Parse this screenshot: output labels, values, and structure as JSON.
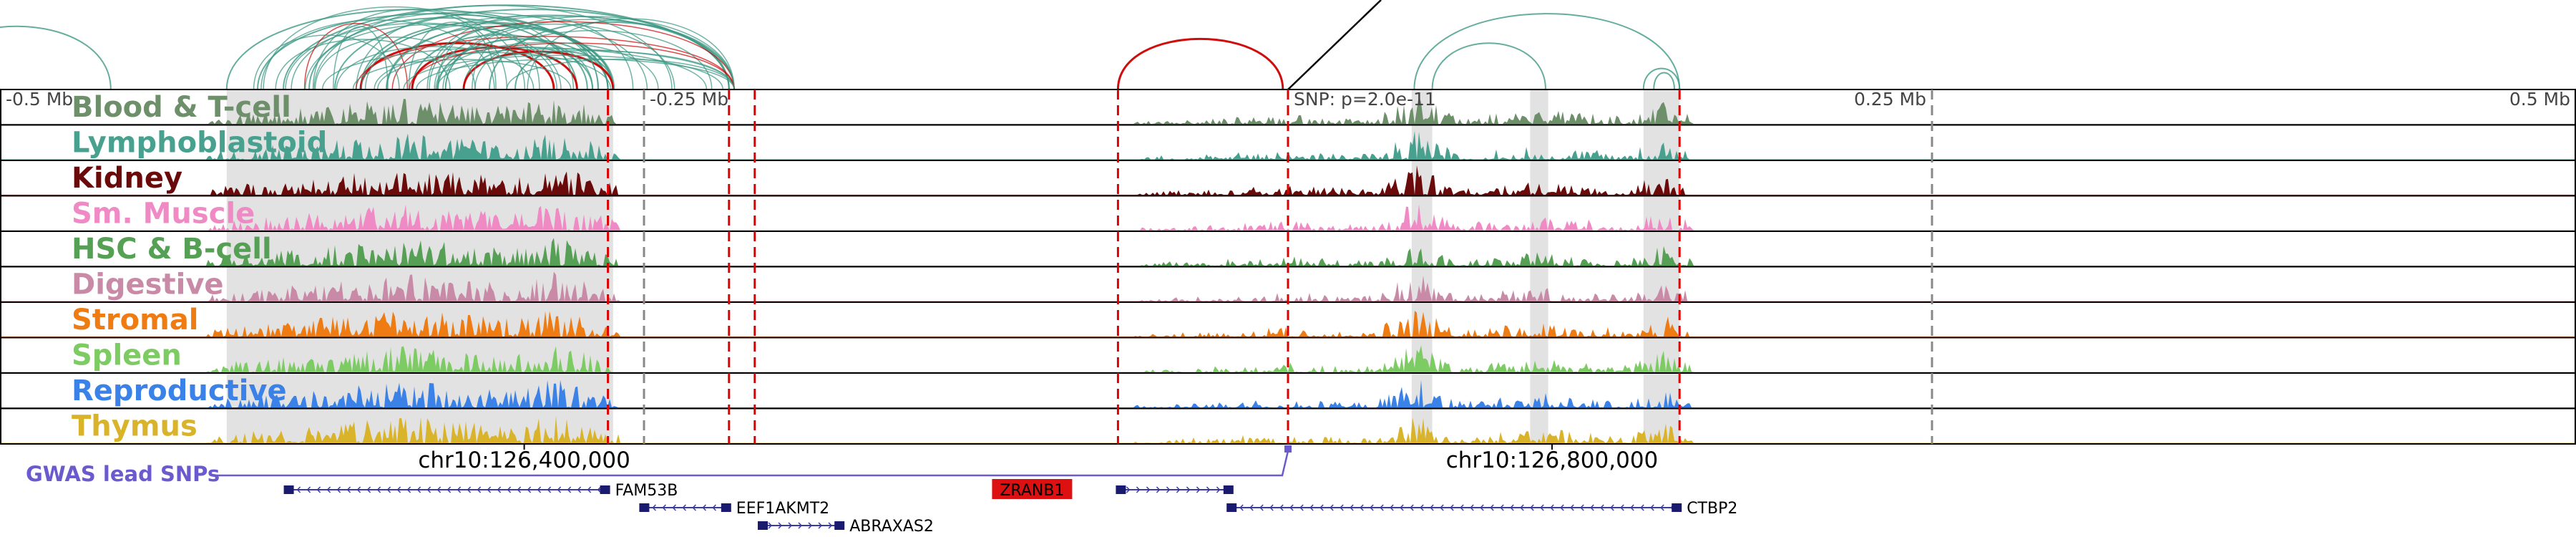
{
  "chart_data": {
    "type": "area",
    "title": "",
    "colors": {
      "arc_default": "#3f9a85",
      "arc_highlight": "#cc0000",
      "highlight_band": "#e2e2e2",
      "gwas": "#6a5acd",
      "gene_body": "#1a1a6e",
      "gene_arrow": "#3a3aa0",
      "highlighted_gene_bg": "#dd1111",
      "red_dash": "#dd0000",
      "gray_dash": "#888888"
    },
    "x_axis_labels": [
      {
        "text": "-0.5 Mb",
        "pos": 0.0
      },
      {
        "text": "-0.25 Mb",
        "pos": 0.25
      },
      {
        "text": "SNP: p=2.0e-11",
        "pos": 0.5
      },
      {
        "text": "0.25 Mb",
        "pos": 0.75
      },
      {
        "text": "0.5 Mb",
        "pos": 1.0
      }
    ],
    "coordinate_labels": [
      {
        "text": "chr10:126,400,000",
        "pos": 0.2035
      },
      {
        "text": "chr10:126,800,000",
        "pos": 0.6025
      }
    ],
    "tracks": [
      {
        "name": "Blood & T-cell",
        "color": "#6d8f6a"
      },
      {
        "name": "Lymphoblastoid",
        "color": "#48a08f"
      },
      {
        "name": "Kidney",
        "color": "#6b0a0a"
      },
      {
        "name": "Sm. Muscle",
        "color": "#f08ac5"
      },
      {
        "name": "HSC & B-cell",
        "color": "#55a055"
      },
      {
        "name": "Digestive",
        "color": "#c98aa8"
      },
      {
        "name": "Stromal",
        "color": "#ef7b13"
      },
      {
        "name": "Spleen",
        "color": "#7dcc63"
      },
      {
        "name": "Reproductive",
        "color": "#3b82e8"
      },
      {
        "name": "Thymus",
        "color": "#d9b42b"
      }
    ],
    "highlight_regions": [
      [
        0.088,
        0.238
      ],
      [
        0.548,
        0.556
      ],
      [
        0.594,
        0.601
      ],
      [
        0.638,
        0.652
      ]
    ],
    "red_dashed_lines": [
      0.236,
      0.283,
      0.293,
      0.434,
      0.5,
      0.652
    ],
    "gray_dashed_lines": [
      0.25,
      0.75
    ],
    "peak_clusters": [
      {
        "center": 0.16,
        "width": 0.08,
        "height": 0.9
      },
      {
        "center": 0.215,
        "width": 0.025,
        "height": 1.0
      },
      {
        "center": 0.5,
        "width": 0.06,
        "height": 0.35
      },
      {
        "center": 0.55,
        "width": 0.015,
        "height": 1.0
      },
      {
        "center": 0.6,
        "width": 0.05,
        "height": 0.5
      },
      {
        "center": 0.645,
        "width": 0.012,
        "height": 0.8
      }
    ],
    "arcs": [
      {
        "from": -0.03,
        "to": 0.043,
        "h": 0.75,
        "color": "arc_default"
      },
      {
        "from": 0.088,
        "to": 0.236,
        "h": 0.95,
        "color": "arc_default"
      },
      {
        "from": 0.1,
        "to": 0.238,
        "h": 0.9,
        "color": "arc_default"
      },
      {
        "from": 0.11,
        "to": 0.283,
        "h": 1.0,
        "color": "arc_default"
      },
      {
        "from": 0.12,
        "to": 0.224,
        "h": 0.85,
        "color": "arc_default"
      },
      {
        "from": 0.13,
        "to": 0.283,
        "h": 0.95,
        "color": "arc_default"
      },
      {
        "from": 0.14,
        "to": 0.236,
        "h": 0.8,
        "color": "arc_default"
      },
      {
        "from": 0.15,
        "to": 0.238,
        "h": 0.75,
        "color": "arc_default"
      },
      {
        "from": 0.16,
        "to": 0.228,
        "h": 0.65,
        "color": "arc_default"
      },
      {
        "from": 0.17,
        "to": 0.236,
        "h": 0.6,
        "color": "arc_default"
      },
      {
        "from": 0.18,
        "to": 0.23,
        "h": 0.5,
        "color": "arc_default"
      },
      {
        "from": 0.19,
        "to": 0.283,
        "h": 0.8,
        "color": "arc_default"
      },
      {
        "from": 0.2,
        "to": 0.238,
        "h": 0.45,
        "color": "arc_default"
      },
      {
        "from": 0.14,
        "to": 0.215,
        "h": 0.55,
        "color": "arc_highlight"
      },
      {
        "from": 0.16,
        "to": 0.224,
        "h": 0.5,
        "color": "arc_highlight"
      },
      {
        "from": 0.18,
        "to": 0.238,
        "h": 0.45,
        "color": "arc_highlight"
      },
      {
        "from": 0.434,
        "to": 0.498,
        "h": 0.6,
        "color": "arc_highlight"
      },
      {
        "from": 0.549,
        "to": 0.652,
        "h": 0.9,
        "color": "arc_default"
      },
      {
        "from": 0.556,
        "to": 0.6,
        "h": 0.55,
        "color": "arc_default"
      },
      {
        "from": 0.638,
        "to": 0.652,
        "h": 0.25,
        "color": "arc_default"
      },
      {
        "from": 0.642,
        "to": 0.65,
        "h": 0.2,
        "color": "arc_default"
      }
    ],
    "snp_line": {
      "x": 0.5
    },
    "gwas_label": "GWAS lead SNPs",
    "genes": [
      {
        "name": "FAM53B",
        "start": 0.111,
        "end": 0.236,
        "row": 0,
        "strand": "-",
        "highlight": false
      },
      {
        "name": "EEF1AKMT2",
        "start": 0.249,
        "end": 0.283,
        "row": 1,
        "strand": "-",
        "highlight": false
      },
      {
        "name": "ABRAXAS2",
        "start": 0.295,
        "end": 0.327,
        "row": 2,
        "strand": "+",
        "highlight": false
      },
      {
        "name": "ZRANB1",
        "start": 0.434,
        "end": 0.478,
        "row": 0,
        "strand": "+",
        "highlight": true
      },
      {
        "name": "CTBP2",
        "start": 0.477,
        "end": 0.652,
        "row": 1,
        "strand": "-",
        "highlight": false
      }
    ]
  }
}
